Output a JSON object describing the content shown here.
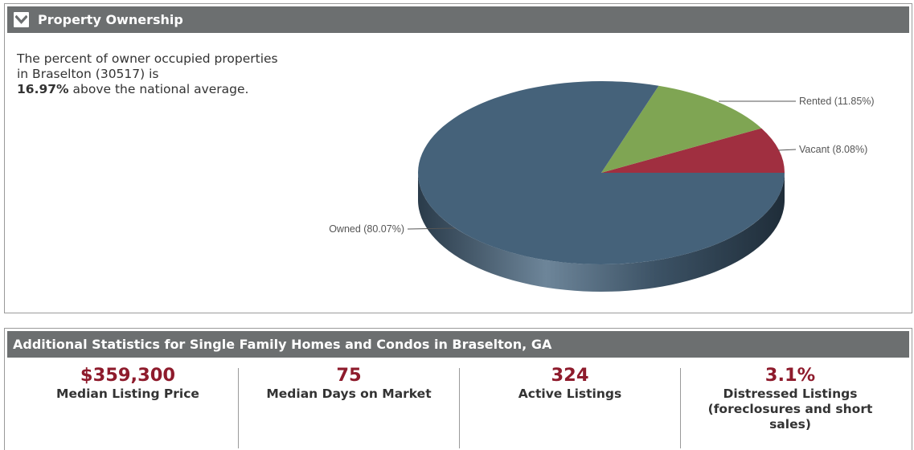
{
  "ownership": {
    "title": "Property Ownership",
    "description_lead": "The percent of owner occupied properties in Braselton (30517) is",
    "description_highlight": "16.97%",
    "description_tail": "above the national average."
  },
  "chart_data": {
    "type": "pie",
    "style": "3d",
    "slices": [
      {
        "name": "Owned",
        "value": 80.07,
        "label": "Owned (80.07%)",
        "color": "#45627a"
      },
      {
        "name": "Rented",
        "value": 11.85,
        "label": "Rented (11.85%)",
        "color": "#7fa553"
      },
      {
        "name": "Vacant",
        "value": 8.08,
        "label": "Vacant (8.08%)",
        "color": "#a02f40"
      }
    ],
    "legend": "none"
  },
  "stats": {
    "title": "Additional Statistics for Single Family Homes and Condos in Braselton, GA",
    "items": [
      {
        "value": "$359,300",
        "label": "Median Listing Price"
      },
      {
        "value": "75",
        "label": "Median Days on Market"
      },
      {
        "value": "324",
        "label": "Active Listings"
      },
      {
        "value": "3.1%",
        "label": "Distressed Listings (foreclosures and short sales)"
      }
    ]
  },
  "colors": {
    "header_bg": "#6c6f70",
    "stat_value": "#8e1b2c",
    "border": "#9a9a9a"
  },
  "icons": {
    "toggle": "chevron-down-icon"
  }
}
